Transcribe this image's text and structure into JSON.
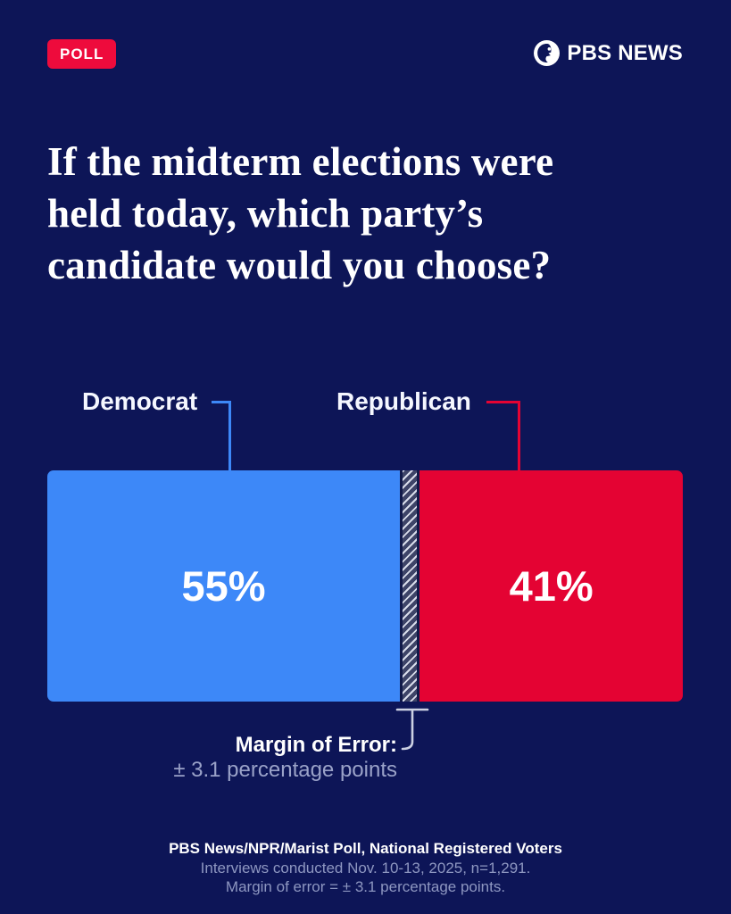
{
  "page": {
    "background_color": "#0d1557"
  },
  "header": {
    "badge_label": "POLL",
    "badge_color": "#ee0b3c",
    "brand_name": "PBS NEWS"
  },
  "headline": {
    "lines": [
      "If the midterm elections were",
      "held today, which party’s",
      "candidate would you choose?"
    ]
  },
  "chart_data": {
    "type": "bar",
    "title": "If the midterm elections were held today, which party’s candidate would you choose?",
    "categories": [
      "Democrat",
      "Republican"
    ],
    "values": [
      55,
      41
    ],
    "value_labels": [
      "55%",
      "41%"
    ],
    "margin_of_error": 3.1,
    "colors": {
      "democrat": "#3d88f8",
      "republican": "#e40333"
    },
    "annotations": {
      "moe_title": "Margin of Error:",
      "moe_value": "± 3.1 percentage points"
    },
    "layout": {
      "orientation": "horizontal",
      "single_stacked_bar": true,
      "moe_gap_between_segments": true
    }
  },
  "footer": {
    "lines": [
      "PBS News/NPR/Marist Poll, National Registered Voters",
      "Interviews conducted Nov. 10-13, 2025, n=1,291.",
      "Margin of error = ± 3.1 percentage points."
    ]
  }
}
